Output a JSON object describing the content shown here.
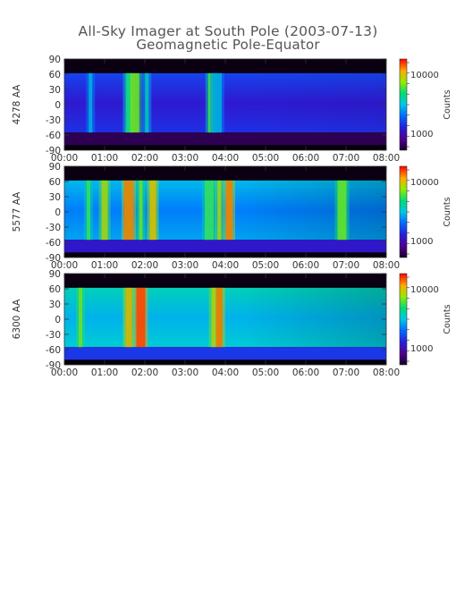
{
  "figure": {
    "title": "All-Sky Imager at South Pole (2003-07-13)",
    "subtitle": "Geomagnetic Pole-Equator"
  },
  "chart_data": [
    {
      "type": "heatmap",
      "panel": "4278 AA",
      "ylabel": "4278 AA",
      "colorbar_label": "Counts",
      "colorbar_ticks": [
        "10000",
        "1000"
      ],
      "x_ticks": [
        "00:00",
        "01:00",
        "02:00",
        "03:00",
        "04:00",
        "05:00",
        "06:00",
        "07:00",
        "08:00"
      ],
      "y_ticks": [
        "90",
        "60",
        "30",
        "0",
        "-30",
        "-60",
        "-90"
      ],
      "xlim": [
        "00:00",
        "08:00"
      ],
      "ylim": [
        -90,
        90
      ],
      "data_band_lat": [
        -55,
        62
      ],
      "bright_events_hours": [
        0.65,
        1.6,
        1.75,
        2.05,
        3.65,
        3.8
      ]
    },
    {
      "type": "heatmap",
      "panel": "5577 AA",
      "ylabel": "5577 AA",
      "colorbar_label": "Counts",
      "colorbar_ticks": [
        "10000",
        "1000"
      ],
      "x_ticks": [
        "00:00",
        "01:00",
        "02:00",
        "03:00",
        "04:00",
        "05:00",
        "06:00",
        "07:00",
        "08:00"
      ],
      "y_ticks": [
        "90",
        "60",
        "30",
        "0",
        "-30",
        "-60",
        "-90"
      ],
      "xlim": [
        "00:00",
        "08:00"
      ],
      "ylim": [
        -90,
        90
      ],
      "data_band_lat": [
        -55,
        62
      ],
      "bright_events_hours": [
        0.6,
        1.0,
        1.6,
        1.9,
        2.2,
        3.6,
        3.85,
        4.1,
        6.9
      ]
    },
    {
      "type": "heatmap",
      "panel": "6300 AA",
      "ylabel": "6300 AA",
      "colorbar_label": "Counts",
      "colorbar_ticks": [
        "10000",
        "1000"
      ],
      "x_ticks": [
        "00:00",
        "01:00",
        "02:00",
        "03:00",
        "04:00",
        "05:00",
        "06:00",
        "07:00",
        "08:00"
      ],
      "y_ticks": [
        "90",
        "60",
        "30",
        "0",
        "-30",
        "-60",
        "-90"
      ],
      "xlim": [
        "00:00",
        "08:00"
      ],
      "ylim": [
        -90,
        90
      ],
      "data_band_lat": [
        -55,
        62
      ],
      "bright_events_hours": [
        0.4,
        1.6,
        1.9,
        3.7,
        3.85
      ]
    }
  ]
}
